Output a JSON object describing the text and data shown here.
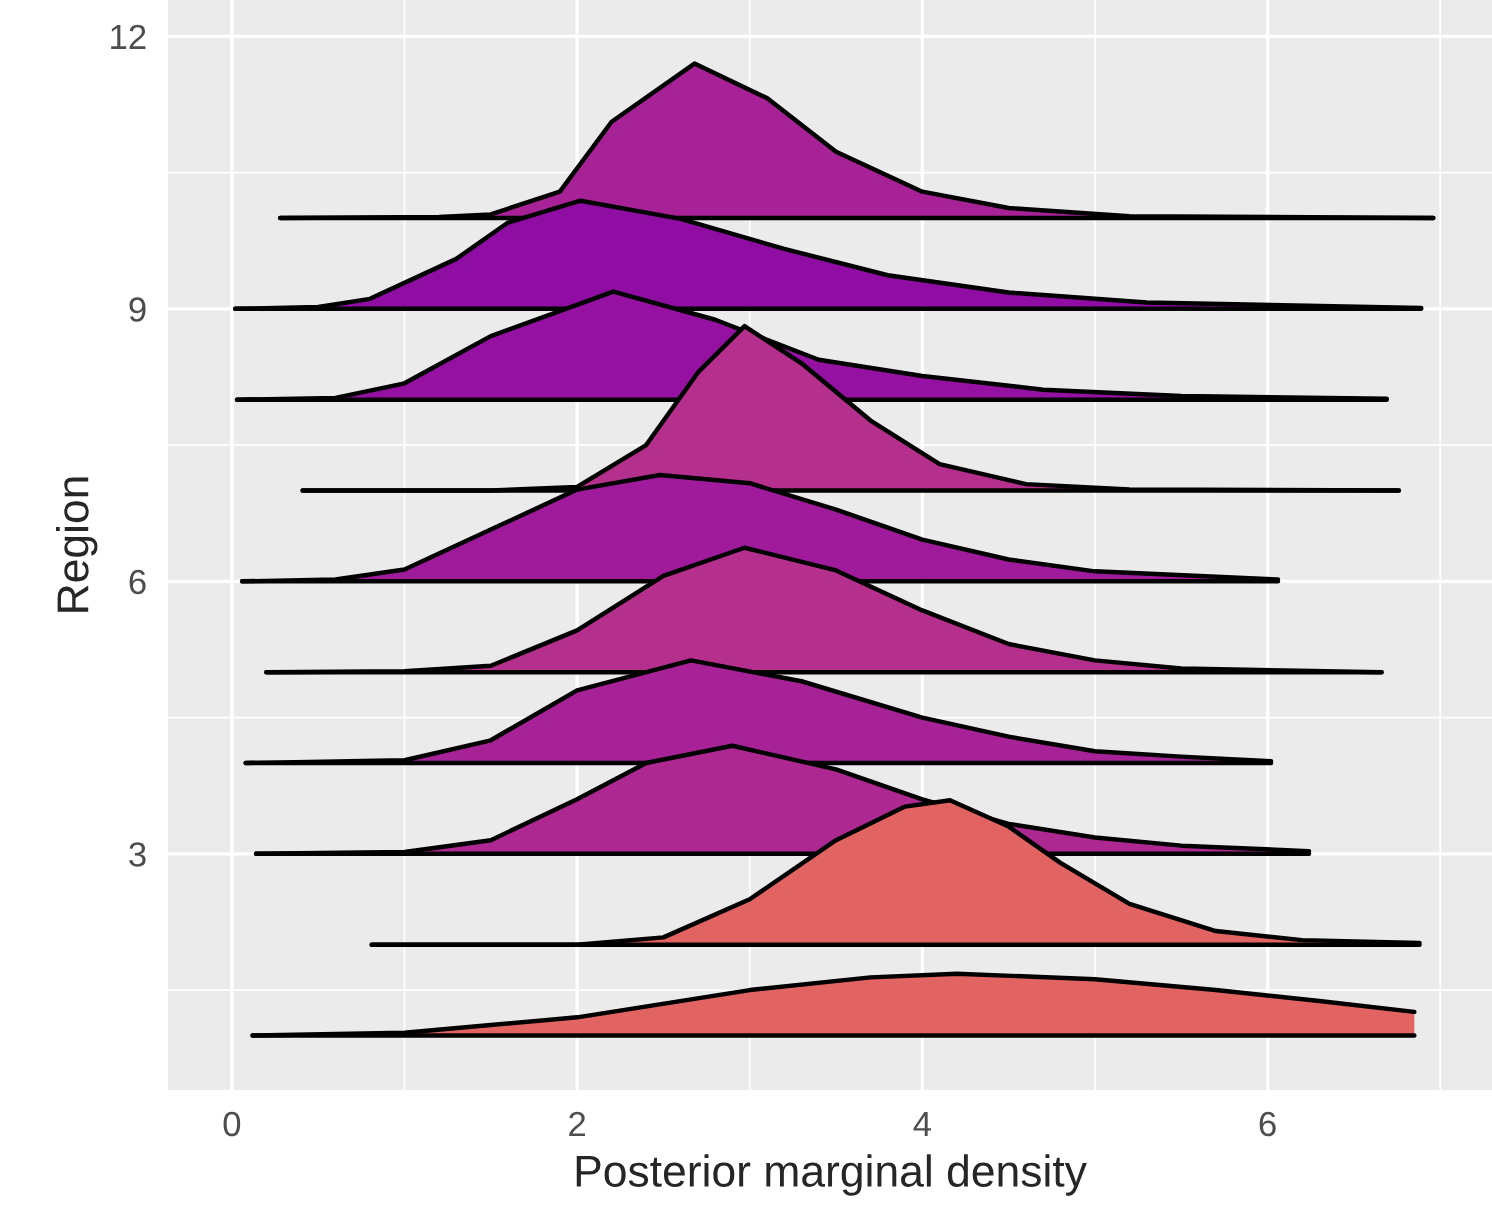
{
  "chart_data": {
    "type": "area",
    "xlabel": "Posterior marginal density",
    "ylabel": "Region",
    "xlim": [
      -0.37,
      7.3
    ],
    "ylim": [
      0.4,
      12.4
    ],
    "xticks": [
      0,
      2,
      4,
      6
    ],
    "yticks": [
      3,
      6,
      9,
      12
    ],
    "grid": true,
    "series": [
      {
        "color": "#e16462",
        "x": [
          0.12,
          1.0,
          2.0,
          3.0,
          3.7,
          4.2,
          5.0,
          5.7,
          6.3,
          6.85
        ],
        "values": [
          1.0,
          1.03,
          1.2,
          1.5,
          1.64,
          1.68,
          1.62,
          1.5,
          1.38,
          1.26
        ]
      },
      {
        "color": "#e16462",
        "x": [
          0.81,
          2.0,
          2.5,
          3.0,
          3.5,
          3.9,
          4.16,
          4.5,
          4.8,
          5.2,
          5.7,
          6.2,
          6.88
        ],
        "values": [
          2.0,
          2.0,
          2.08,
          2.5,
          3.15,
          3.52,
          3.59,
          3.3,
          2.9,
          2.45,
          2.15,
          2.05,
          2.02
        ]
      },
      {
        "color": "#ae2892",
        "x": [
          0.14,
          1.0,
          1.5,
          2.0,
          2.4,
          2.9,
          3.5,
          4.0,
          4.5,
          5.0,
          5.5,
          6.24
        ],
        "values": [
          3.0,
          3.02,
          3.15,
          3.6,
          4.0,
          4.19,
          3.93,
          3.6,
          3.33,
          3.18,
          3.09,
          3.03
        ]
      },
      {
        "color": "#a72197",
        "x": [
          0.08,
          1.0,
          1.5,
          2.0,
          2.66,
          3.3,
          4.0,
          4.5,
          5.0,
          5.5,
          6.02
        ],
        "values": [
          4.0,
          4.03,
          4.25,
          4.8,
          5.13,
          4.9,
          4.5,
          4.29,
          4.13,
          4.07,
          4.02
        ]
      },
      {
        "color": "#b52f8c",
        "x": [
          0.2,
          1.0,
          1.5,
          2.0,
          2.5,
          2.97,
          3.5,
          4.0,
          4.5,
          5.0,
          5.5,
          6.66
        ],
        "values": [
          5.0,
          5.01,
          5.07,
          5.46,
          6.06,
          6.37,
          6.12,
          5.68,
          5.31,
          5.13,
          5.04,
          5.0
        ]
      },
      {
        "color": "#a01a9c",
        "x": [
          0.06,
          0.6,
          1.0,
          1.5,
          2.0,
          2.48,
          3.0,
          3.5,
          4.0,
          4.5,
          5.0,
          6.06
        ],
        "values": [
          6.0,
          6.02,
          6.13,
          6.57,
          7.01,
          7.17,
          7.08,
          6.79,
          6.46,
          6.24,
          6.11,
          6.02
        ]
      },
      {
        "color": "#b52f8c",
        "x": [
          0.41,
          1.5,
          2.0,
          2.4,
          2.7,
          2.97,
          3.3,
          3.7,
          4.1,
          4.6,
          5.2,
          6.76
        ],
        "values": [
          7.0,
          7.0,
          7.04,
          7.5,
          8.3,
          8.81,
          8.4,
          7.77,
          7.29,
          7.07,
          7.01,
          7.0
        ]
      },
      {
        "color": "#9511a1",
        "x": [
          0.03,
          0.6,
          1.0,
          1.5,
          2.21,
          2.8,
          3.4,
          4.0,
          4.7,
          5.5,
          6.69
        ],
        "values": [
          8.0,
          8.02,
          8.18,
          8.7,
          9.19,
          8.88,
          8.44,
          8.26,
          8.11,
          8.04,
          8.01
        ]
      },
      {
        "color": "#900da4",
        "x": [
          0.02,
          0.5,
          0.8,
          1.3,
          1.6,
          2.02,
          2.6,
          3.2,
          3.8,
          4.5,
          5.3,
          6.89
        ],
        "values": [
          9.0,
          9.02,
          9.11,
          9.55,
          9.95,
          10.19,
          9.99,
          9.66,
          9.37,
          9.18,
          9.07,
          9.01
        ]
      },
      {
        "color": "#a72197",
        "x": [
          0.28,
          1.2,
          1.5,
          1.9,
          2.2,
          2.68,
          3.1,
          3.5,
          4.0,
          4.5,
          5.2,
          6.96
        ],
        "values": [
          10.0,
          10.01,
          10.04,
          10.29,
          11.06,
          11.7,
          11.32,
          10.73,
          10.29,
          10.11,
          10.02,
          10.0
        ]
      }
    ]
  }
}
